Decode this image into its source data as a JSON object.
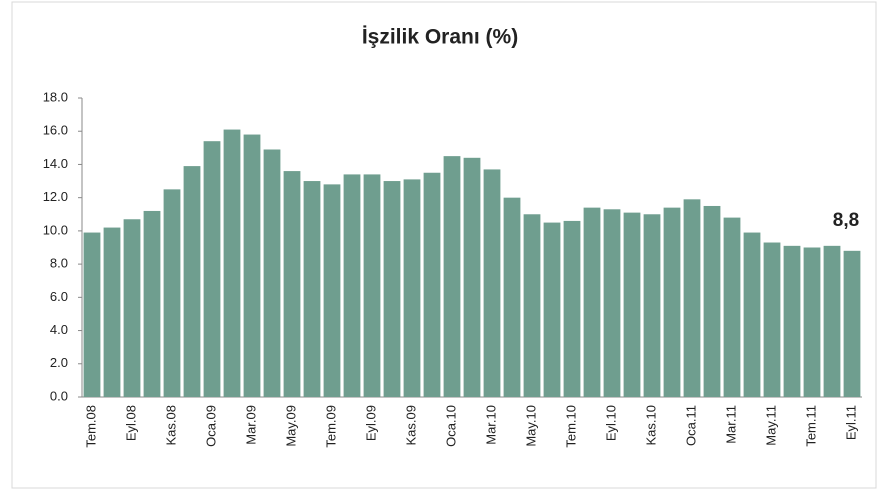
{
  "chart_data": {
    "type": "bar",
    "title": "İşzilik Oranı (%)",
    "categories": [
      "Tem.08",
      null,
      "Eyl.08",
      null,
      "Kas.08",
      null,
      "Oca.09",
      null,
      "Mar.09",
      null,
      "May.09",
      null,
      "Tem.09",
      null,
      "Eyl.09",
      null,
      "Kas.09",
      null,
      "Oca.10",
      null,
      "Mar.10",
      null,
      "May.10",
      null,
      "Tem.10",
      null,
      "Eyl.10",
      null,
      "Kas.10",
      null,
      "Oca.11",
      null,
      "Mar.11",
      null,
      "May.11",
      null,
      "Tem.11",
      null,
      "Eyl.11"
    ],
    "values": [
      9.9,
      10.2,
      10.7,
      11.2,
      12.5,
      13.9,
      15.4,
      16.1,
      15.8,
      14.9,
      13.6,
      13.0,
      12.8,
      13.4,
      13.4,
      13.0,
      13.1,
      13.5,
      14.5,
      14.4,
      13.7,
      12.0,
      11.0,
      10.5,
      10.6,
      11.4,
      11.3,
      11.1,
      11.0,
      11.4,
      11.9,
      11.5,
      10.8,
      9.9,
      9.3,
      9.1,
      9.0,
      9.1,
      8.8
    ],
    "value_labels": [
      null,
      null,
      null,
      null,
      null,
      null,
      null,
      null,
      null,
      null,
      null,
      null,
      null,
      null,
      null,
      null,
      null,
      null,
      null,
      null,
      null,
      null,
      null,
      null,
      null,
      null,
      null,
      null,
      null,
      null,
      null,
      null,
      null,
      null,
      null,
      null,
      null,
      null,
      "8,8"
    ],
    "color": "#6f9e8f",
    "ylim": [
      0,
      18
    ],
    "yticks": [
      {
        "value": 0,
        "label": "0.0"
      },
      {
        "value": 2,
        "label": "2.0"
      },
      {
        "value": 4,
        "label": "4.0"
      },
      {
        "value": 6,
        "label": "6.0"
      },
      {
        "value": 8,
        "label": "8.0"
      },
      {
        "value": 10,
        "label": "10.0"
      },
      {
        "value": 12,
        "label": "12.0"
      },
      {
        "value": 14,
        "label": "14.0"
      },
      {
        "value": 16,
        "label": "16.0"
      },
      {
        "value": 18,
        "label": "18.0"
      }
    ],
    "grid": false
  }
}
